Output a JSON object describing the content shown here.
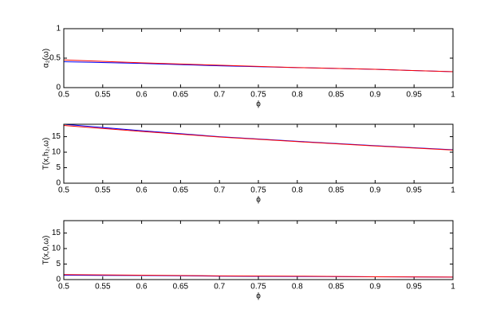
{
  "chart_data": [
    {
      "type": "line",
      "ylabel": "α₂(ω)",
      "xlabel": "ϕ",
      "x": [
        0.5,
        0.6,
        0.7,
        0.8,
        0.9,
        1
      ],
      "series": [
        {
          "color": "#0000ff",
          "values": [
            0.44,
            0.41,
            0.37,
            0.34,
            0.31,
            0.27
          ]
        },
        {
          "color": "#ff0000",
          "values": [
            0.47,
            0.42,
            0.38,
            0.34,
            0.31,
            0.27
          ]
        }
      ],
      "xlim": [
        0.5,
        1
      ],
      "xticks": [
        0.5,
        0.55,
        0.6,
        0.65,
        0.7,
        0.75,
        0.8,
        0.85,
        0.9,
        0.95,
        1
      ],
      "ylim": [
        0,
        1
      ],
      "yticks": [
        0,
        0.5,
        1
      ]
    },
    {
      "type": "line",
      "ylabel": "T(x,h₂,ω)",
      "xlabel": "ϕ",
      "x": [
        0.5,
        0.6,
        0.7,
        0.8,
        0.9,
        1
      ],
      "series": [
        {
          "color": "#0000ff",
          "values": [
            19.0,
            16.9,
            15.0,
            13.5,
            12.1,
            10.8
          ]
        },
        {
          "color": "#ff0000",
          "values": [
            18.6,
            16.7,
            14.9,
            13.4,
            12.0,
            10.7
          ]
        }
      ],
      "xlim": [
        0.5,
        1
      ],
      "xticks": [
        0.5,
        0.55,
        0.6,
        0.65,
        0.7,
        0.75,
        0.8,
        0.85,
        0.9,
        0.95,
        1
      ],
      "ylim": [
        0,
        19
      ],
      "yticks": [
        0,
        5,
        10,
        15
      ]
    },
    {
      "type": "line",
      "ylabel": "T(x,0,ω)",
      "xlabel": "ϕ",
      "x": [
        0.5,
        0.6,
        0.7,
        0.8,
        0.9,
        1
      ],
      "series": [
        {
          "color": "#0000ff",
          "values": [
            1.4,
            1.3,
            1.1,
            1.0,
            0.9,
            0.8
          ]
        },
        {
          "color": "#ff0000",
          "values": [
            1.6,
            1.4,
            1.2,
            1.1,
            0.9,
            0.8
          ]
        }
      ],
      "xlim": [
        0.5,
        1
      ],
      "xticks": [
        0.5,
        0.55,
        0.6,
        0.65,
        0.7,
        0.75,
        0.8,
        0.85,
        0.9,
        0.95,
        1
      ],
      "ylim": [
        0,
        19
      ],
      "yticks": [
        0,
        5,
        10,
        15
      ]
    }
  ]
}
